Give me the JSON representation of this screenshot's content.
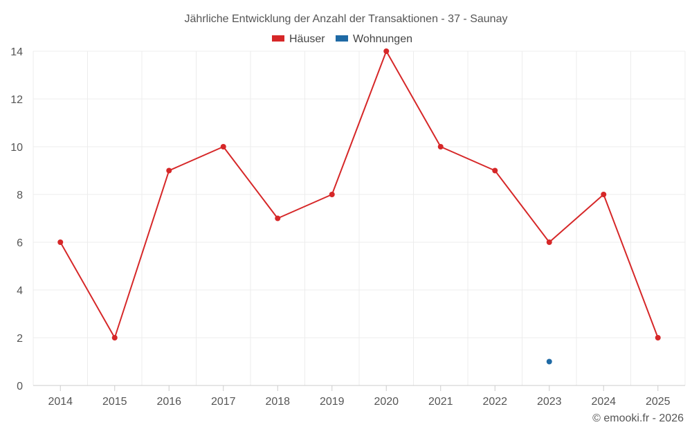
{
  "chart_data": {
    "type": "line",
    "title": "Jährliche Entwicklung der Anzahl der Transaktionen - 37 - Saunay",
    "categories": [
      "2014",
      "2015",
      "2016",
      "2017",
      "2018",
      "2019",
      "2020",
      "2021",
      "2022",
      "2023",
      "2024",
      "2025"
    ],
    "series": [
      {
        "name": "Häuser",
        "color": "#d62728",
        "values": [
          6,
          2,
          9,
          10,
          7,
          8,
          14,
          10,
          9,
          6,
          8,
          2
        ]
      },
      {
        "name": "Wohnungen",
        "color": "#1f6aa5",
        "values": [
          null,
          null,
          null,
          null,
          null,
          null,
          null,
          null,
          null,
          1,
          null,
          null
        ]
      }
    ],
    "yticks": [
      0,
      2,
      4,
      6,
      8,
      10,
      12,
      14
    ],
    "ylim": [
      0,
      14
    ],
    "xlabel": "",
    "ylabel": "",
    "grid": true,
    "legend_position": "top-center"
  },
  "copyright": "© emooki.fr - 2026"
}
